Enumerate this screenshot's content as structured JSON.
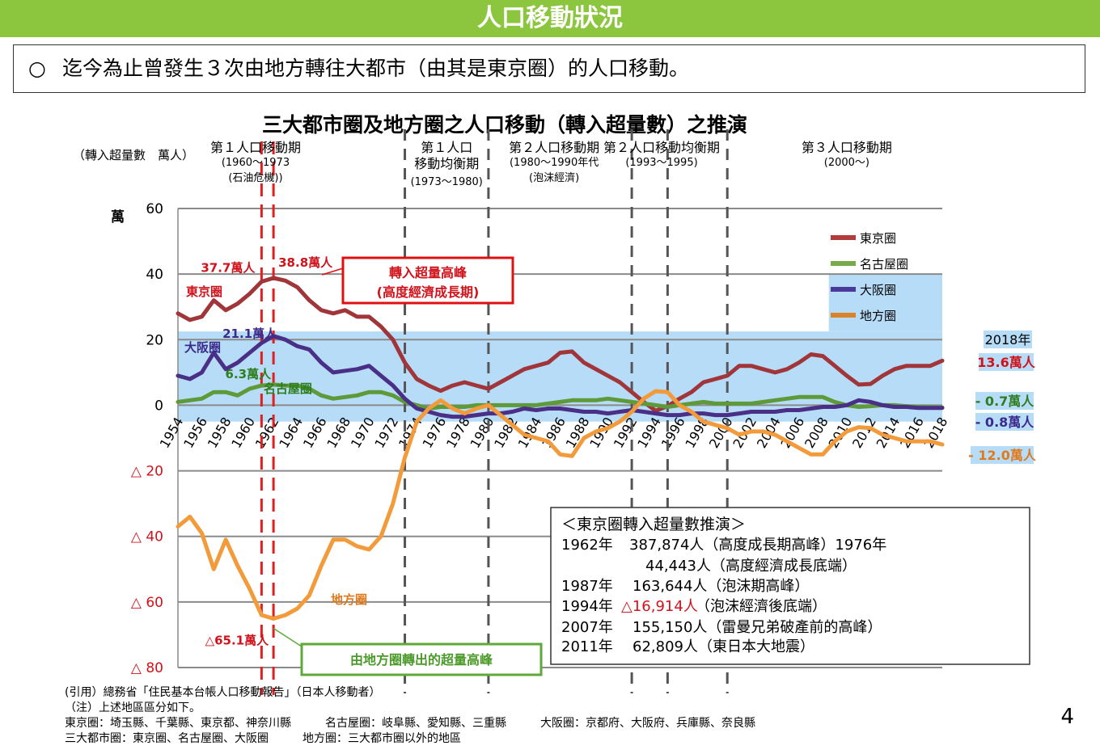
{
  "header": {
    "title": "人口移動狀況"
  },
  "summary": {
    "bullet": "○",
    "text": "迄今為止曾發生３次由地方轉往大都市（由其是東京圈）的人口移動。"
  },
  "chart_data": {
    "type": "line",
    "title": "三大都市圈及地方圈之人口移動（轉入超量數）之推演",
    "ylabel": "（轉入超量數　萬人）",
    "unit_label": "萬",
    "ylim": [
      -80,
      60
    ],
    "yticks": [
      {
        "value": 60,
        "label": "60"
      },
      {
        "value": 40,
        "label": "40"
      },
      {
        "value": 20,
        "label": "20"
      },
      {
        "value": 0,
        "label": "0"
      },
      {
        "value": -20,
        "label": "△ 20"
      },
      {
        "value": -40,
        "label": "△ 40"
      },
      {
        "value": -60,
        "label": "△ 60"
      },
      {
        "value": -80,
        "label": "△ 80"
      }
    ],
    "xlim": [
      1954,
      2018
    ],
    "xticks": [
      "1954",
      "1956",
      "1958",
      "1960",
      "1962",
      "1964",
      "1966",
      "1968",
      "1970",
      "1972",
      "1974",
      "1976",
      "1978",
      "1980",
      "1982",
      "1984",
      "1986",
      "1988",
      "1990",
      "1992",
      "1994",
      "1996",
      "1998",
      "2000",
      "2002",
      "2004",
      "2006",
      "2008",
      "2010",
      "2012",
      "2014",
      "2016",
      "2018"
    ],
    "series": [
      {
        "name": "東京圈",
        "color": "#a0363a",
        "legend_color": "#b23b3b",
        "points": [
          [
            1954,
            28
          ],
          [
            1955,
            26
          ],
          [
            1956,
            27
          ],
          [
            1957,
            32
          ],
          [
            1958,
            29
          ],
          [
            1959,
            31
          ],
          [
            1960,
            34
          ],
          [
            1961,
            37.7
          ],
          [
            1962,
            38.8
          ],
          [
            1963,
            38
          ],
          [
            1964,
            36
          ],
          [
            1965,
            32
          ],
          [
            1966,
            29
          ],
          [
            1967,
            28
          ],
          [
            1968,
            29
          ],
          [
            1969,
            27
          ],
          [
            1970,
            27
          ],
          [
            1971,
            24
          ],
          [
            1972,
            20
          ],
          [
            1973,
            13
          ],
          [
            1974,
            8
          ],
          [
            1975,
            6
          ],
          [
            1976,
            4.4
          ],
          [
            1977,
            6
          ],
          [
            1978,
            7
          ],
          [
            1979,
            6
          ],
          [
            1980,
            5
          ],
          [
            1981,
            7
          ],
          [
            1982,
            9
          ],
          [
            1983,
            11
          ],
          [
            1984,
            12
          ],
          [
            1985,
            13
          ],
          [
            1986,
            16
          ],
          [
            1987,
            16.4
          ],
          [
            1988,
            13
          ],
          [
            1989,
            11
          ],
          [
            1990,
            9
          ],
          [
            1991,
            7
          ],
          [
            1992,
            4
          ],
          [
            1993,
            1
          ],
          [
            1994,
            -1.7
          ],
          [
            1995,
            -0.3
          ],
          [
            1996,
            2
          ],
          [
            1997,
            4
          ],
          [
            1998,
            7
          ],
          [
            1999,
            8
          ],
          [
            2000,
            9
          ],
          [
            2001,
            12
          ],
          [
            2002,
            12
          ],
          [
            2003,
            11
          ],
          [
            2004,
            10
          ],
          [
            2005,
            11
          ],
          [
            2006,
            13
          ],
          [
            2007,
            15.5
          ],
          [
            2008,
            15
          ],
          [
            2009,
            12
          ],
          [
            2010,
            9
          ],
          [
            2011,
            6.3
          ],
          [
            2012,
            6.5
          ],
          [
            2013,
            9
          ],
          [
            2014,
            11
          ],
          [
            2015,
            12
          ],
          [
            2016,
            12
          ],
          [
            2017,
            12
          ],
          [
            2018,
            13.6
          ]
        ]
      },
      {
        "name": "名古屋圈",
        "color": "#5e9a3a",
        "legend_color": "#77aa4a",
        "points": [
          [
            1954,
            1
          ],
          [
            1955,
            1.5
          ],
          [
            1956,
            2
          ],
          [
            1957,
            4
          ],
          [
            1958,
            4
          ],
          [
            1959,
            3
          ],
          [
            1960,
            5
          ],
          [
            1961,
            6
          ],
          [
            1962,
            6.3
          ],
          [
            1963,
            6
          ],
          [
            1964,
            6
          ],
          [
            1965,
            5
          ],
          [
            1966,
            3
          ],
          [
            1967,
            2
          ],
          [
            1968,
            2.5
          ],
          [
            1969,
            3
          ],
          [
            1970,
            4
          ],
          [
            1971,
            4
          ],
          [
            1972,
            3
          ],
          [
            1973,
            1
          ],
          [
            1974,
            0
          ],
          [
            1975,
            -1
          ],
          [
            1976,
            -0.5
          ],
          [
            1977,
            -0.5
          ],
          [
            1978,
            -0.5
          ],
          [
            1979,
            0
          ],
          [
            1980,
            0
          ],
          [
            1981,
            0
          ],
          [
            1982,
            0
          ],
          [
            1983,
            0
          ],
          [
            1984,
            0
          ],
          [
            1985,
            0.5
          ],
          [
            1986,
            1
          ],
          [
            1987,
            1.5
          ],
          [
            1988,
            1.5
          ],
          [
            1989,
            1.5
          ],
          [
            1990,
            2
          ],
          [
            1991,
            1.5
          ],
          [
            1992,
            1
          ],
          [
            1993,
            0.5
          ],
          [
            1994,
            0
          ],
          [
            1995,
            -0.5
          ],
          [
            1996,
            0
          ],
          [
            1997,
            0.5
          ],
          [
            1998,
            1
          ],
          [
            1999,
            0.5
          ],
          [
            2000,
            0.5
          ],
          [
            2001,
            0.5
          ],
          [
            2002,
            0.5
          ],
          [
            2003,
            1
          ],
          [
            2004,
            1.5
          ],
          [
            2005,
            2
          ],
          [
            2006,
            2.5
          ],
          [
            2007,
            2.5
          ],
          [
            2008,
            2.5
          ],
          [
            2009,
            1
          ],
          [
            2010,
            0
          ],
          [
            2011,
            -0.5
          ],
          [
            2012,
            -0.3
          ],
          [
            2013,
            0
          ],
          [
            2014,
            0
          ],
          [
            2015,
            -0.3
          ],
          [
            2016,
            -0.5
          ],
          [
            2017,
            -0.6
          ],
          [
            2018,
            -0.7
          ]
        ]
      },
      {
        "name": "大阪圈",
        "color": "#4a2f86",
        "legend_color": "#4a3a9c",
        "points": [
          [
            1954,
            9
          ],
          [
            1955,
            8
          ],
          [
            1956,
            10
          ],
          [
            1957,
            16
          ],
          [
            1958,
            11
          ],
          [
            1959,
            13
          ],
          [
            1960,
            16
          ],
          [
            1961,
            19
          ],
          [
            1962,
            21.1
          ],
          [
            1963,
            20
          ],
          [
            1964,
            18
          ],
          [
            1965,
            17
          ],
          [
            1966,
            13
          ],
          [
            1967,
            10
          ],
          [
            1968,
            10.5
          ],
          [
            1969,
            11
          ],
          [
            1970,
            12
          ],
          [
            1971,
            9
          ],
          [
            1972,
            6
          ],
          [
            1973,
            2
          ],
          [
            1974,
            -1
          ],
          [
            1975,
            -2
          ],
          [
            1976,
            -3
          ],
          [
            1977,
            -3.5
          ],
          [
            1978,
            -3.5
          ],
          [
            1979,
            -3
          ],
          [
            1980,
            -2.5
          ],
          [
            1981,
            -2.5
          ],
          [
            1982,
            -2
          ],
          [
            1983,
            -1
          ],
          [
            1984,
            -1.5
          ],
          [
            1985,
            -1
          ],
          [
            1986,
            -1
          ],
          [
            1987,
            -1.5
          ],
          [
            1988,
            -2
          ],
          [
            1989,
            -2
          ],
          [
            1990,
            -2.5
          ],
          [
            1991,
            -2
          ],
          [
            1992,
            -1.5
          ],
          [
            1993,
            -2
          ],
          [
            1994,
            -2.5
          ],
          [
            1995,
            -3
          ],
          [
            1996,
            -3
          ],
          [
            1997,
            -2.5
          ],
          [
            1998,
            -2.5
          ],
          [
            1999,
            -3
          ],
          [
            2000,
            -3
          ],
          [
            2001,
            -2.5
          ],
          [
            2002,
            -2
          ],
          [
            2003,
            -2
          ],
          [
            2004,
            -2
          ],
          [
            2005,
            -1.5
          ],
          [
            2006,
            -1.5
          ],
          [
            2007,
            -1
          ],
          [
            2008,
            -0.5
          ],
          [
            2009,
            -0.5
          ],
          [
            2010,
            0
          ],
          [
            2011,
            1.5
          ],
          [
            2012,
            1
          ],
          [
            2013,
            0
          ],
          [
            2014,
            -0.5
          ],
          [
            2015,
            -0.5
          ],
          [
            2016,
            -0.8
          ],
          [
            2017,
            -0.8
          ],
          [
            2018,
            -0.8
          ]
        ]
      },
      {
        "name": "地方圈",
        "color": "#f39a3a",
        "legend_color": "#d9822b",
        "points": [
          [
            1954,
            -37
          ],
          [
            1955,
            -34
          ],
          [
            1956,
            -39
          ],
          [
            1957,
            -50
          ],
          [
            1958,
            -41
          ],
          [
            1959,
            -49
          ],
          [
            1960,
            -56
          ],
          [
            1961,
            -64
          ],
          [
            1962,
            -65.1
          ],
          [
            1963,
            -64
          ],
          [
            1964,
            -62
          ],
          [
            1965,
            -58
          ],
          [
            1966,
            -49
          ],
          [
            1967,
            -41
          ],
          [
            1968,
            -41
          ],
          [
            1969,
            -43
          ],
          [
            1970,
            -44
          ],
          [
            1971,
            -40
          ],
          [
            1972,
            -30
          ],
          [
            1973,
            -16
          ],
          [
            1974,
            -5
          ],
          [
            1975,
            -1
          ],
          [
            1976,
            1.5
          ],
          [
            1977,
            -1
          ],
          [
            1978,
            -2.5
          ],
          [
            1979,
            -1
          ],
          [
            1980,
            0
          ],
          [
            1981,
            -3
          ],
          [
            1982,
            -6
          ],
          [
            1983,
            -9
          ],
          [
            1984,
            -10
          ],
          [
            1985,
            -11
          ],
          [
            1986,
            -15
          ],
          [
            1987,
            -15.5
          ],
          [
            1988,
            -10
          ],
          [
            1989,
            -8
          ],
          [
            1990,
            -7
          ],
          [
            1991,
            -5
          ],
          [
            1992,
            -2
          ],
          [
            1993,
            2
          ],
          [
            1994,
            4.3
          ],
          [
            1995,
            4
          ],
          [
            1996,
            0
          ],
          [
            1997,
            -2
          ],
          [
            1998,
            -5
          ],
          [
            1999,
            -6
          ],
          [
            2000,
            -7
          ],
          [
            2001,
            -9
          ],
          [
            2002,
            -8
          ],
          [
            2003,
            -8
          ],
          [
            2004,
            -9
          ],
          [
            2005,
            -11
          ],
          [
            2006,
            -13
          ],
          [
            2007,
            -15
          ],
          [
            2008,
            -15
          ],
          [
            2009,
            -11
          ],
          [
            2010,
            -8
          ],
          [
            2011,
            -6.7
          ],
          [
            2012,
            -7
          ],
          [
            2013,
            -9
          ],
          [
            2014,
            -10
          ],
          [
            2015,
            -11
          ],
          [
            2016,
            -11
          ],
          [
            2017,
            -11
          ],
          [
            2018,
            -12
          ]
        ]
      }
    ],
    "legend": {
      "placement": "top-right"
    },
    "period_labels": [
      {
        "x": 1960.5,
        "lines": [
          "第１人口移動期",
          "(1960～1973",
          "(石油危機))"
        ]
      },
      {
        "x": 1976.5,
        "lines": [
          "第１人口",
          "移動均衡期",
          "(1973～1980)"
        ]
      },
      {
        "x": 1985.5,
        "lines": [
          "第２人口移動期",
          "(1980～1990年代",
          "(泡沫經濟)"
        ]
      },
      {
        "x": 1994.5,
        "lines": [
          "第２人口移動均衡期",
          "(1993～1995)"
        ]
      },
      {
        "x": 2010,
        "lines": [
          "第３人口移動期",
          "(2000～)"
        ]
      }
    ],
    "period_dividers": [
      1973,
      1980,
      1992,
      1995,
      2000
    ],
    "peak_dividers": [
      1961,
      1962
    ],
    "annotations": {
      "tokyo_1961": "37.7萬人",
      "tokyo_1962": "38.8萬人",
      "tokyo_name": "東京圈",
      "osaka_peak": "21.1萬人",
      "osaka_name": "大阪圈",
      "nagoya_name": "名古屋圈",
      "nagoya_peak": "6.3萬人",
      "local_name": "地方圈",
      "local_peak": "△65.1萬人",
      "peak_box_line1": "轉入超量高峰",
      "peak_box_line2": "(高度經濟成長期)",
      "outflow_box": "由地方圈轉出的超量高峰",
      "year_2018": "2018年",
      "tokyo_2018": "13.6萬人",
      "nagoya_2018": "- 0.7萬人",
      "osaka_2018": "- 0.8萬人",
      "local_2018": "- 12.0萬人"
    },
    "tokyo_trend": {
      "title": "＜東京圈轉入超量數推演＞",
      "rows": [
        [
          "1962年",
          "387,874人（高度成長期高峰）1976年"
        ],
        [
          "",
          "44,443人（高度經濟成長底端）"
        ],
        [
          "1987年",
          "163,644人（泡沫期高峰）"
        ],
        [
          "1994年",
          "△16,914人",
          "（泡沫經濟後底端）"
        ],
        [
          "2007年",
          "155,150人（雷曼兄弟破產前的高峰）"
        ],
        [
          "2011年",
          "62,809人（東日本大地震）"
        ]
      ]
    }
  },
  "footnotes": [
    "(引用）總務省「住民基本台帳人口移動報告」（日本人移動者）",
    "（注）上述地區區分如下。",
    "東京圈：埼玉縣、千葉縣、東京都、神奈川縣　　　名古屋圈：岐阜縣、愛知縣、三重縣　　　大阪圈：京都府、大阪府、兵庫縣、奈良縣",
    "三大都市圈：東京圈、名古屋圈、大阪圈　　　地方圈：三大都市圈以外的地區"
  ],
  "page_number": "4"
}
